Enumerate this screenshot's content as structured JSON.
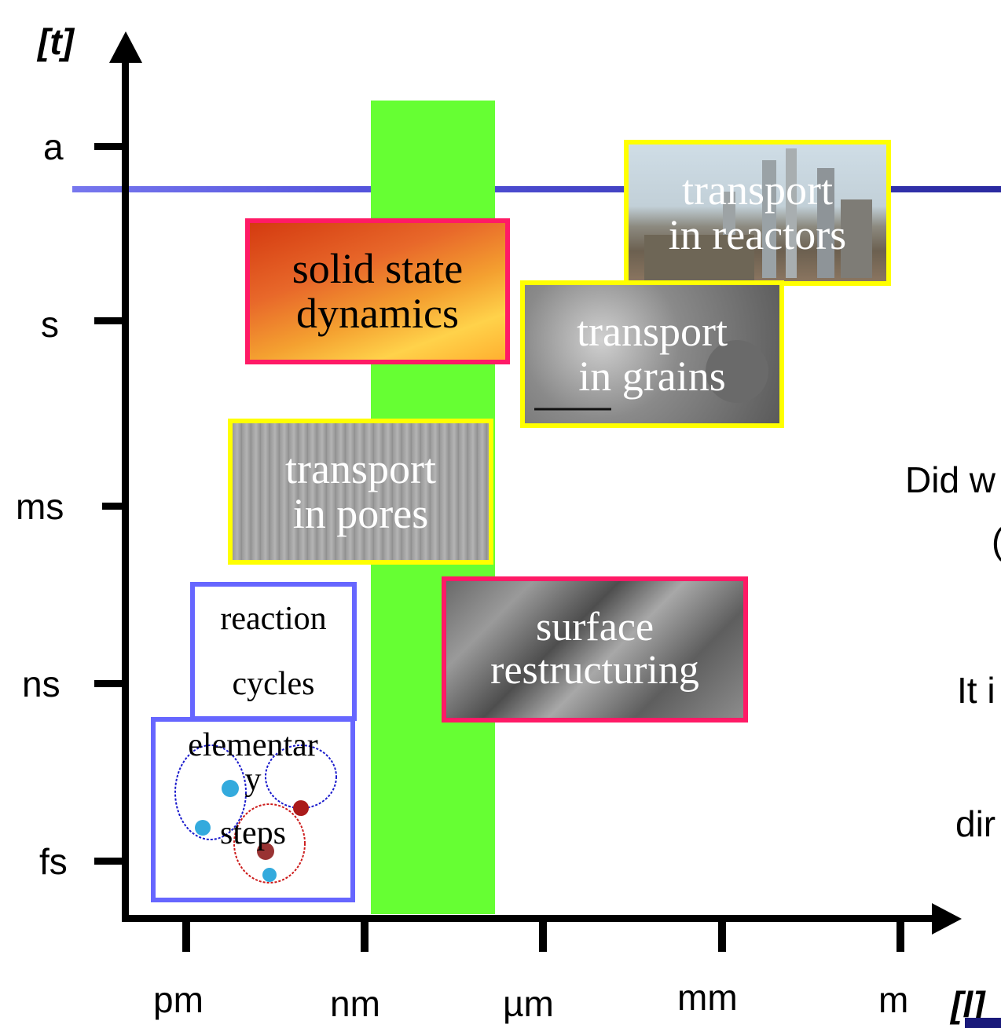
{
  "axes": {
    "y_label": "[t]",
    "x_label": "[l]",
    "y_ticks": [
      "a",
      "s",
      "ms",
      "ns",
      "fs"
    ],
    "x_ticks": [
      "pm",
      "nm",
      "µm",
      "mm",
      "m"
    ]
  },
  "boxes": {
    "solid_state": {
      "line1": "solid state",
      "line2": "dynamics"
    },
    "transport_reactors": {
      "line1": "transport",
      "line2": "in reactors"
    },
    "transport_grains": {
      "line1": "transport",
      "line2": "in grains"
    },
    "transport_pores": {
      "line1": "transport",
      "line2": "in pores"
    },
    "reaction_cycles": {
      "line1": "reaction",
      "line2": "cycles"
    },
    "surface_restructuring": {
      "line1": "surface",
      "line2": "restructuring"
    },
    "elementary_steps": {
      "line1": "elementar",
      "line2": "y",
      "line3": "steps"
    }
  },
  "cut_off_text": [
    "Did w",
    "(",
    "It i",
    "dir"
  ],
  "colors": {
    "highlight_band": "#66ff33",
    "timeline": "#3333aa",
    "border_red": "#ff1a66",
    "border_yellow": "#ffff00",
    "border_blue": "#6666ff"
  }
}
